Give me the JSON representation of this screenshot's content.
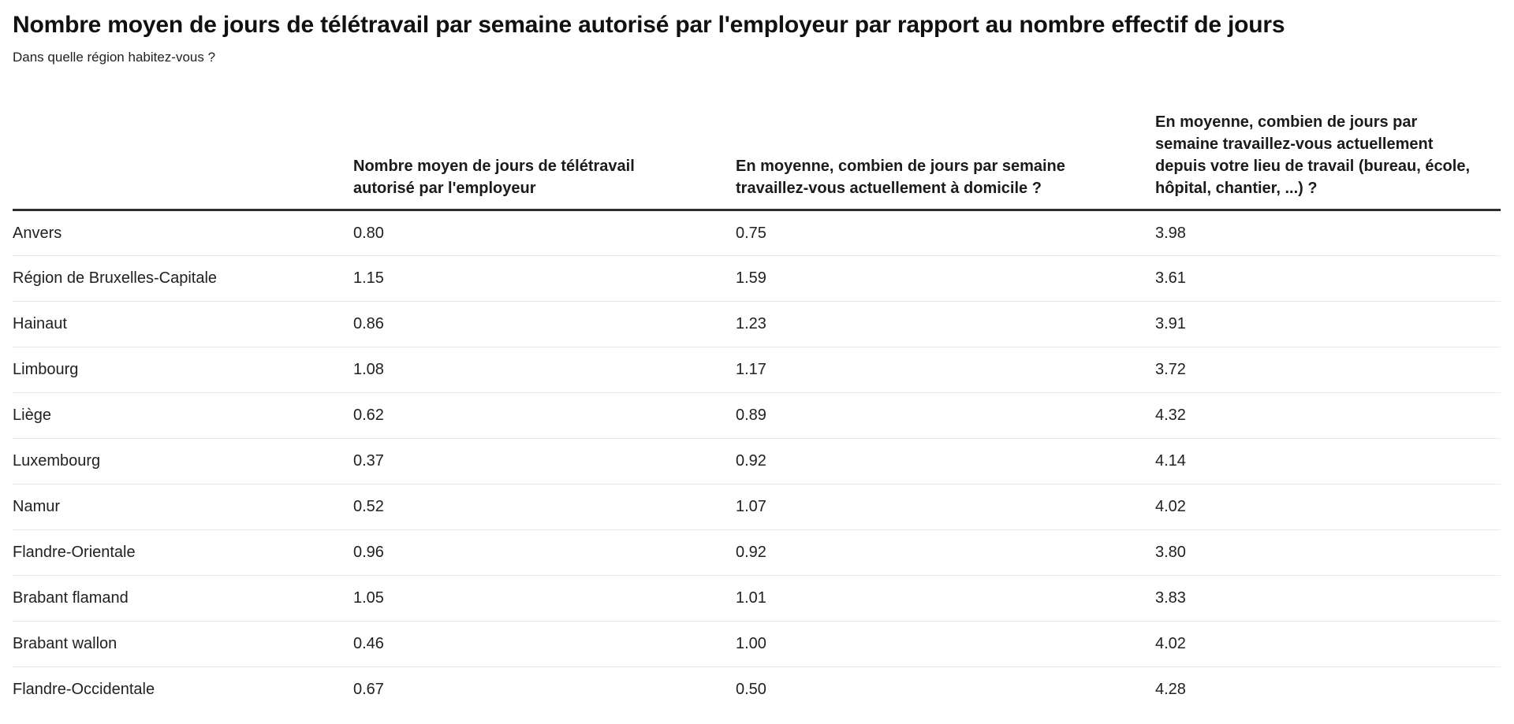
{
  "page": {
    "title": "Nombre moyen de jours de télétravail par semaine autorisé par l'employeur par rapport au nombre effectif de jours",
    "subtitle": "Dans quelle région habitez-vous ?"
  },
  "table": {
    "columns": [
      {
        "label": ""
      },
      {
        "label": "Nombre moyen de jours de télétravail autorisé par l'employeur"
      },
      {
        "label": "En moyenne, combien de jours par semaine travaillez-vous actuellement à domicile ?"
      },
      {
        "label": "En moyenne, combien de jours par semaine travaillez-vous actuellement depuis votre lieu de travail (bureau, école, hôpital, chantier, ...) ?"
      }
    ],
    "rows": [
      {
        "region": "Anvers",
        "values": [
          "0.80",
          "0.75",
          "3.98"
        ]
      },
      {
        "region": "Région de Bruxelles-Capitale",
        "values": [
          "1.15",
          "1.59",
          "3.61"
        ]
      },
      {
        "region": "Hainaut",
        "values": [
          "0.86",
          "1.23",
          "3.91"
        ]
      },
      {
        "region": "Limbourg",
        "values": [
          "1.08",
          "1.17",
          "3.72"
        ]
      },
      {
        "region": "Liège",
        "values": [
          "0.62",
          "0.89",
          "4.32"
        ]
      },
      {
        "region": "Luxembourg",
        "values": [
          "0.37",
          "0.92",
          "4.14"
        ]
      },
      {
        "region": "Namur",
        "values": [
          "0.52",
          "1.07",
          "4.02"
        ]
      },
      {
        "region": "Flandre-Orientale",
        "values": [
          "0.96",
          "0.92",
          "3.80"
        ]
      },
      {
        "region": "Brabant flamand",
        "values": [
          "1.05",
          "1.01",
          "3.83"
        ]
      },
      {
        "region": "Brabant wallon",
        "values": [
          "0.46",
          "1.00",
          "4.02"
        ]
      },
      {
        "region": "Flandre-Occidentale",
        "values": [
          "0.67",
          "0.50",
          "4.28"
        ]
      }
    ]
  },
  "colors": {
    "background": "#ffffff",
    "text": "#212121",
    "header_border": "#2e2e2e",
    "row_separator": "#e9e9e9"
  },
  "chart_data": {
    "type": "table",
    "title": "Nombre moyen de jours de télétravail par semaine autorisé par l'employeur par rapport au nombre effectif de jours",
    "subtitle": "Dans quelle région habitez-vous ?",
    "categories": [
      "Anvers",
      "Région de Bruxelles-Capitale",
      "Hainaut",
      "Limbourg",
      "Liège",
      "Luxembourg",
      "Namur",
      "Flandre-Orientale",
      "Brabant flamand",
      "Brabant wallon",
      "Flandre-Occidentale"
    ],
    "series": [
      {
        "name": "Nombre moyen de jours de télétravail autorisé par l'employeur",
        "values": [
          0.8,
          1.15,
          0.86,
          1.08,
          0.62,
          0.37,
          0.52,
          0.96,
          1.05,
          0.46,
          0.67
        ]
      },
      {
        "name": "En moyenne, combien de jours par semaine travaillez-vous actuellement à domicile ?",
        "values": [
          0.75,
          1.59,
          1.23,
          1.17,
          0.89,
          0.92,
          1.07,
          0.92,
          1.01,
          1.0,
          0.5
        ]
      },
      {
        "name": "En moyenne, combien de jours par semaine travaillez-vous actuellement depuis votre lieu de travail (bureau, école, hôpital, chantier, ...) ?",
        "values": [
          3.98,
          3.61,
          3.91,
          3.72,
          4.32,
          4.14,
          4.02,
          3.8,
          3.83,
          4.02,
          4.28
        ]
      }
    ],
    "layout": {
      "grid": "horizontal row separators",
      "header_rule": "thick dark line under header",
      "values_decimals": 2
    }
  }
}
